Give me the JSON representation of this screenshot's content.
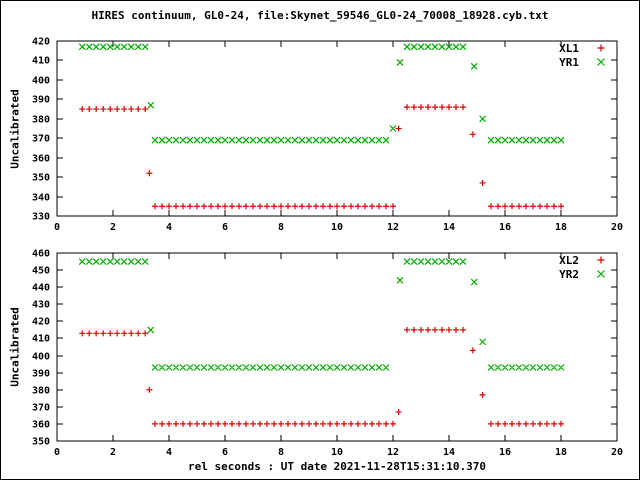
{
  "title": "HIRES continuum, GL0-24, file:Skynet_59546_GL0-24_70008_18928.cyb.txt",
  "xlabel": "rel seconds : UT date 2021-11-28T15:31:10.370",
  "colors": {
    "red": "#dd0000",
    "green": "#00aa00",
    "axis": "#000000"
  },
  "chart_data": [
    {
      "type": "scatter",
      "title": "",
      "ylabel": "Uncalibrated",
      "xlabel": "",
      "xlim": [
        0,
        20
      ],
      "ylim": [
        330,
        420
      ],
      "xticks": [
        0,
        2,
        4,
        6,
        8,
        10,
        12,
        14,
        16,
        18,
        20
      ],
      "yticks": [
        330,
        340,
        350,
        360,
        370,
        380,
        390,
        400,
        410,
        420
      ],
      "grid": false,
      "legend_position": "top-right",
      "series": [
        {
          "name": "XL1",
          "marker": "plus",
          "marker_glyph": "+",
          "color_key": "red",
          "runs": [
            [
              0.9,
              3.15,
              0.25,
              385
            ],
            [
              3.5,
              12.0,
              0.25,
              335
            ],
            [
              12.5,
              14.5,
              0.25,
              386
            ],
            [
              15.5,
              18.0,
              0.25,
              335
            ]
          ],
          "points": [
            [
              3.3,
              352
            ],
            [
              12.2,
              375
            ],
            [
              14.85,
              372
            ],
            [
              15.2,
              347
            ]
          ]
        },
        {
          "name": "YR1",
          "marker": "cross",
          "marker_glyph": "×",
          "color_key": "green",
          "runs": [
            [
              0.9,
              3.15,
              0.25,
              417
            ],
            [
              3.5,
              11.75,
              0.25,
              369
            ],
            [
              12.5,
              14.5,
              0.25,
              417
            ],
            [
              15.5,
              18.0,
              0.25,
              369
            ]
          ],
          "points": [
            [
              3.35,
              387
            ],
            [
              12.0,
              375
            ],
            [
              12.25,
              409
            ],
            [
              14.9,
              407
            ],
            [
              15.2,
              380
            ]
          ]
        }
      ]
    },
    {
      "type": "scatter",
      "title": "",
      "ylabel": "Uncalibrated",
      "xlabel": "",
      "xlim": [
        0,
        20
      ],
      "ylim": [
        350,
        460
      ],
      "xticks": [
        0,
        2,
        4,
        6,
        8,
        10,
        12,
        14,
        16,
        18,
        20
      ],
      "yticks": [
        350,
        360,
        370,
        380,
        390,
        400,
        410,
        420,
        430,
        440,
        450,
        460
      ],
      "grid": false,
      "legend_position": "top-right",
      "series": [
        {
          "name": "XL2",
          "marker": "plus",
          "marker_glyph": "+",
          "color_key": "red",
          "runs": [
            [
              0.9,
              3.15,
              0.25,
              413
            ],
            [
              3.5,
              12.0,
              0.25,
              360
            ],
            [
              12.5,
              14.5,
              0.25,
              415
            ],
            [
              15.5,
              18.0,
              0.25,
              360
            ]
          ],
          "points": [
            [
              3.3,
              380
            ],
            [
              12.2,
              367
            ],
            [
              14.85,
              403
            ],
            [
              15.2,
              377
            ]
          ]
        },
        {
          "name": "YR2",
          "marker": "cross",
          "marker_glyph": "×",
          "color_key": "green",
          "runs": [
            [
              0.9,
              3.15,
              0.25,
              455
            ],
            [
              3.5,
              11.75,
              0.25,
              393
            ],
            [
              12.5,
              14.5,
              0.25,
              455
            ],
            [
              15.5,
              18.0,
              0.25,
              393
            ]
          ],
          "points": [
            [
              3.35,
              415
            ],
            [
              12.25,
              444
            ],
            [
              14.9,
              443
            ],
            [
              15.2,
              408
            ]
          ]
        }
      ]
    }
  ]
}
